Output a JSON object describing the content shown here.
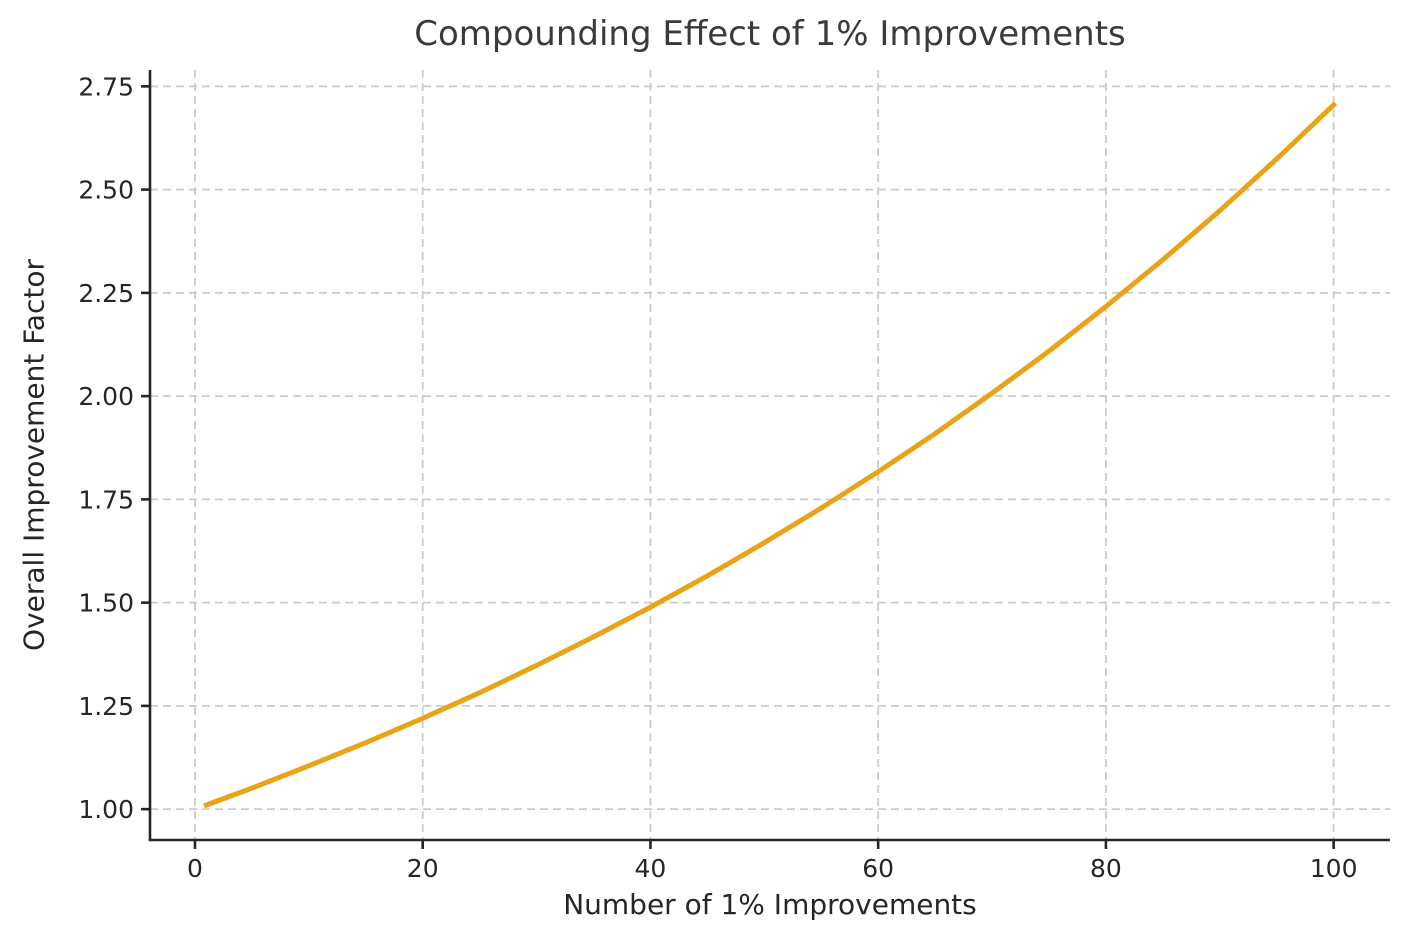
{
  "chart_data": {
    "type": "line",
    "title": "Compounding Effect of 1% Improvements",
    "xlabel": "Number of 1% Improvements",
    "ylabel": "Overall Improvement Factor",
    "x": [
      1,
      5,
      10,
      15,
      20,
      25,
      30,
      35,
      40,
      45,
      50,
      55,
      60,
      65,
      70,
      75,
      80,
      85,
      90,
      95,
      100
    ],
    "y": [
      1.01,
      1.051,
      1.105,
      1.161,
      1.22,
      1.282,
      1.348,
      1.417,
      1.489,
      1.565,
      1.645,
      1.729,
      1.817,
      1.909,
      2.007,
      2.109,
      2.217,
      2.33,
      2.449,
      2.574,
      2.705
    ],
    "xticks": [
      0,
      20,
      40,
      60,
      80,
      100
    ],
    "xtick_labels": [
      "0",
      "20",
      "40",
      "60",
      "80",
      "100"
    ],
    "yticks": [
      1.0,
      1.25,
      1.5,
      1.75,
      2.0,
      2.25,
      2.5,
      2.75
    ],
    "ytick_labels": [
      "1.00",
      "1.25",
      "1.50",
      "1.75",
      "2.00",
      "2.25",
      "2.50",
      "2.75"
    ],
    "xlim": [
      -3.95,
      104.95
    ],
    "ylim": [
      0.9253,
      2.7896
    ],
    "grid": true,
    "grid_style": "dashed",
    "legend": false,
    "colors": {
      "line": "#E8A317",
      "grid": "#CBCBCB",
      "axis": "#262626",
      "title": "#3A3A3A",
      "background": "#FFFFFF"
    },
    "line_width": 5
  }
}
